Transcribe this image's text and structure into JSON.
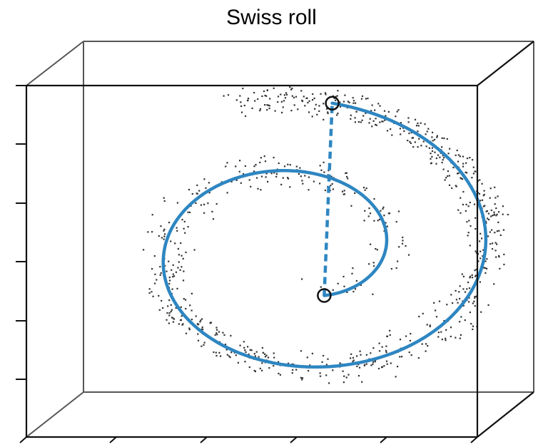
{
  "chart_data": {
    "type": "scatter",
    "title": "Swiss roll",
    "projection": "3d",
    "grid": false,
    "colors": {
      "points": "#333333",
      "geodesic": "#2e86c1",
      "box": "#222222",
      "box_back": "#555555"
    },
    "series": [
      {
        "kind": "spiral-points",
        "t_range": [
          1.5,
          4.6
        ],
        "count": 900
      },
      {
        "kind": "geodesic-path",
        "t_range": [
          1.62,
          4.45
        ],
        "style": "solid"
      },
      {
        "kind": "euclidean-shortcut",
        "style": "dashed",
        "endpoints_marked": true
      }
    ]
  }
}
